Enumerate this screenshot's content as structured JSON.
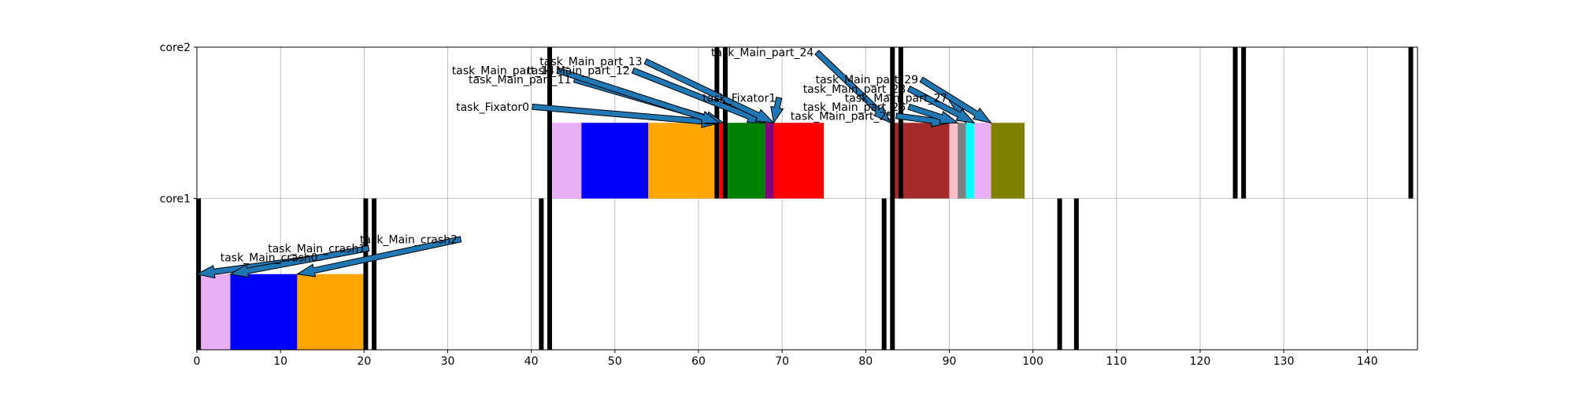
{
  "chart_data": {
    "type": "gantt",
    "title": "",
    "xlabel": "",
    "ylabel": "",
    "xlim": [
      0,
      146
    ],
    "xticks": [
      0,
      10,
      20,
      30,
      40,
      50,
      60,
      70,
      80,
      90,
      100,
      110,
      120,
      130,
      140
    ],
    "ylim": [
      0,
      2
    ],
    "yticks": [
      {
        "value": 1,
        "label": "core1"
      },
      {
        "value": 2,
        "label": "core2"
      }
    ],
    "grid": true,
    "colors": {
      "violet": "#e8aef8",
      "blue": "#0000ff",
      "orange": "#ffa500",
      "green": "#008000",
      "purple": "#800080",
      "red": "#ff0000",
      "brown": "#a52a2a",
      "pink": "#ffc0cb",
      "gray": "#808080",
      "cyan": "#00ffff",
      "olive": "#808000",
      "arrow": "#1f77b4",
      "marker": "#000000"
    },
    "bars": [
      {
        "core": "core1",
        "start": 0,
        "end": 4,
        "color": "violet"
      },
      {
        "core": "core1",
        "start": 4,
        "end": 12,
        "color": "blue"
      },
      {
        "core": "core1",
        "start": 12,
        "end": 20,
        "color": "orange"
      },
      {
        "core": "core2",
        "start": 42.5,
        "end": 46,
        "color": "violet"
      },
      {
        "core": "core2",
        "start": 46,
        "end": 54,
        "color": "blue"
      },
      {
        "core": "core2",
        "start": 54,
        "end": 62,
        "color": "orange"
      },
      {
        "core": "core2",
        "start": 62.5,
        "end": 63,
        "color": "red"
      },
      {
        "core": "core2",
        "start": 63,
        "end": 63.5,
        "color": "purple"
      },
      {
        "core": "core2",
        "start": 63.5,
        "end": 68,
        "color": "green"
      },
      {
        "core": "core2",
        "start": 68,
        "end": 69,
        "color": "purple"
      },
      {
        "core": "core2",
        "start": 69,
        "end": 75,
        "color": "red"
      },
      {
        "core": "core2",
        "start": 83,
        "end": 90,
        "color": "brown"
      },
      {
        "core": "core2",
        "start": 90,
        "end": 91,
        "color": "pink"
      },
      {
        "core": "core2",
        "start": 91,
        "end": 92,
        "color": "gray"
      },
      {
        "core": "core2",
        "start": 92,
        "end": 93,
        "color": "cyan"
      },
      {
        "core": "core2",
        "start": 93,
        "end": 95,
        "color": "violet"
      },
      {
        "core": "core2",
        "start": 95,
        "end": 99,
        "color": "olive"
      }
    ],
    "markers": [
      {
        "core": "core1",
        "x": 0.2
      },
      {
        "core": "core1",
        "x": 20.2
      },
      {
        "core": "core1",
        "x": 21.2
      },
      {
        "core": "core1",
        "x": 41.2
      },
      {
        "core": "core1",
        "x": 42.2
      },
      {
        "core": "core1",
        "x": 82.2
      },
      {
        "core": "core1",
        "x": 83.2
      },
      {
        "core": "core1",
        "x": 103.2
      },
      {
        "core": "core1",
        "x": 105.2
      },
      {
        "core": "core2",
        "x": 42.2
      },
      {
        "core": "core2",
        "x": 62.2
      },
      {
        "core": "core2",
        "x": 63.2
      },
      {
        "core": "core2",
        "x": 83.2
      },
      {
        "core": "core2",
        "x": 84.2
      },
      {
        "core": "core2",
        "x": 124.2
      },
      {
        "core": "core2",
        "x": 125.2
      },
      {
        "core": "core2",
        "x": 145.2
      }
    ],
    "annotations": [
      {
        "label": "task_Main_crash0",
        "text_x": 2.8,
        "text_y": 0.585,
        "target_x": 0,
        "target_y": 0.5
      },
      {
        "label": "task_Main_crash1",
        "text_x": 8.5,
        "text_y": 0.645,
        "target_x": 4,
        "target_y": 0.5
      },
      {
        "label": "task_Main_crash2",
        "text_x": 19.5,
        "text_y": 0.705,
        "target_x": 12,
        "target_y": 0.5
      },
      {
        "label": "task_Fixator0",
        "text_x": 31,
        "text_y": 1.58,
        "target_x": 62.5,
        "target_y": 1.5
      },
      {
        "label": "task_Main_part_11",
        "text_x": 32.5,
        "text_y": 1.76,
        "target_x": 63,
        "target_y": 1.5
      },
      {
        "label": "task_Main_part_12",
        "text_x": 39.5,
        "text_y": 1.82,
        "target_x": 68,
        "target_y": 1.5
      },
      {
        "label": "task_Main_part_13",
        "text_x": 41,
        "text_y": 1.88,
        "target_x": 69,
        "target_y": 1.5
      },
      {
        "label": "task_Main_part_14",
        "text_x": 30.5,
        "text_y": 1.82,
        "target_x": 62.5,
        "target_y": 1.5
      },
      {
        "label": "task_Main_part_24",
        "text_x": 61.5,
        "text_y": 1.94,
        "target_x": 83,
        "target_y": 1.5
      },
      {
        "label": "task_Fixator1",
        "text_x": 60.5,
        "text_y": 1.64,
        "target_x": 69,
        "target_y": 1.5
      },
      {
        "label": "task_Main_part_25",
        "text_x": 71,
        "text_y": 1.52,
        "target_x": 90,
        "target_y": 1.5
      },
      {
        "label": "task_Main_part_26",
        "text_x": 72.5,
        "text_y": 1.58,
        "target_x": 91,
        "target_y": 1.5
      },
      {
        "label": "task_Main_part_27",
        "text_x": 77.5,
        "text_y": 1.64,
        "target_x": 92,
        "target_y": 1.5
      },
      {
        "label": "task_Main_part_28",
        "text_x": 72.5,
        "text_y": 1.7,
        "target_x": 93,
        "target_y": 1.5
      },
      {
        "label": "task_Main_part_29",
        "text_x": 74,
        "text_y": 1.76,
        "target_x": 95,
        "target_y": 1.5
      }
    ]
  }
}
